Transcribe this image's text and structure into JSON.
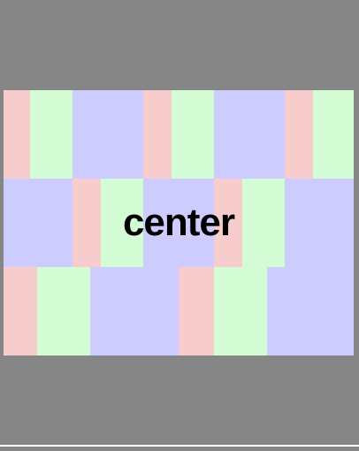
{
  "label": {
    "center": "center"
  },
  "colors": {
    "background": "#868686",
    "pink": "#f6cccc",
    "green": "#d4fcd4",
    "blue": "#ccccff",
    "text": "#000000"
  }
}
